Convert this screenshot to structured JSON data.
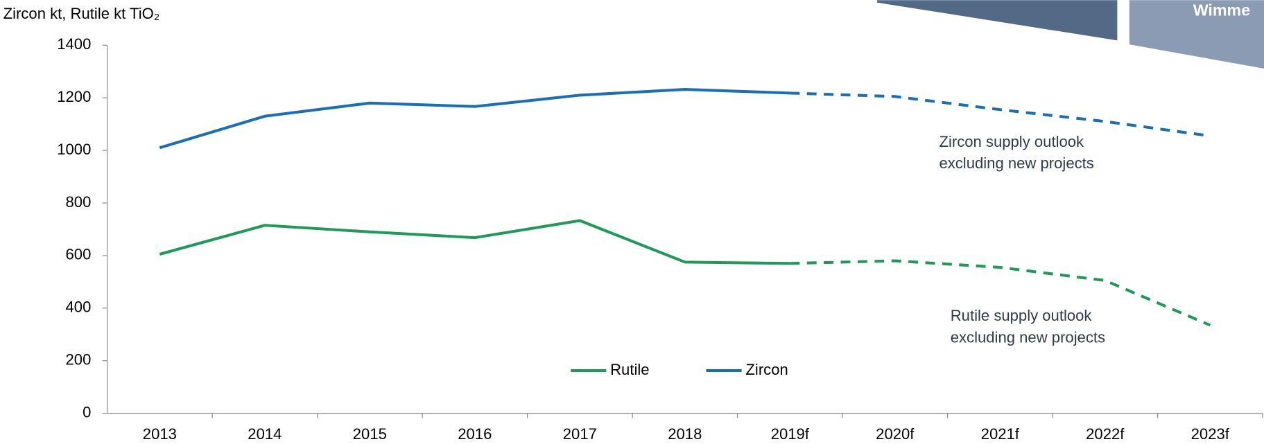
{
  "chart_data": {
    "type": "line",
    "y_label": "Zircon kt, Rutile kt TiO₂",
    "header_text": "Wimme",
    "categories": [
      "2013",
      "2014",
      "2015",
      "2016",
      "2017",
      "2018",
      "2019f",
      "2020f",
      "2021f",
      "2022f",
      "2023f"
    ],
    "series": [
      {
        "name": "Rutile",
        "color": "#1e9a5a",
        "values": [
          605,
          715,
          690,
          668,
          733,
          575,
          570,
          580,
          555,
          505,
          335
        ]
      },
      {
        "name": "Zircon",
        "color": "#1b6fb8",
        "values": [
          1010,
          1130,
          1180,
          1167,
          1210,
          1232,
          1218,
          1205,
          1155,
          1110,
          1055
        ]
      }
    ],
    "dashed_from_index": 6,
    "ylim": [
      0,
      1400
    ],
    "yticks": [
      0,
      200,
      400,
      600,
      800,
      1000,
      1200,
      1400
    ],
    "annotations": [
      {
        "lines": [
          "Zircon supply outlook",
          "excluding new projects"
        ]
      },
      {
        "lines": [
          "Rutile supply outlook",
          "excluding new projects"
        ]
      }
    ]
  }
}
